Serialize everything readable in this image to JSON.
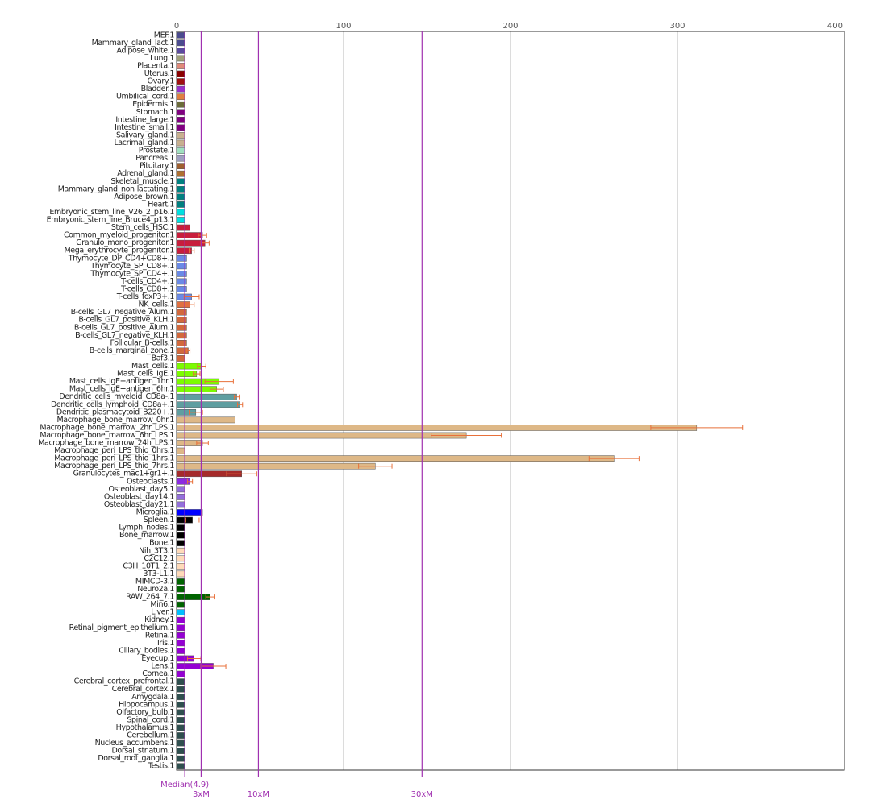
{
  "chart_data": {
    "type": "bar",
    "orientation": "horizontal",
    "categories": [
      "MEF.1",
      "Mammary_gland_lact.1",
      "Adipose_white.1",
      "Lung.1",
      "Placenta.1",
      "Uterus.1",
      "Ovary.1",
      "Bladder.1",
      "Umbilical_cord.1",
      "Epidermis.1",
      "Stomach.1",
      "Intestine_large.1",
      "Intestine_small.1",
      "Salivary_gland.1",
      "Lacrimal_gland.1",
      "Prostate.1",
      "Pancreas.1",
      "Pituitary.1",
      "Adrenal_gland.1",
      "Skeletal_muscle.1",
      "Mammary_gland_non-lactating.1",
      "Adipose_brown.1",
      "Heart.1",
      "Embryonic_stem_line_V26_2_p16.1",
      "Embryonic_stem_line_Bruce4_p13.1",
      "Stem_cells_HSC.1",
      "Common_myeloid_progenitor.1",
      "Granulo_mono_progenitor.1",
      "Mega_erythrocyte_progenitor.1",
      "Thymocyte_DP_CD4+CD8+.1",
      "Thymocyte_SP_CD8+.1",
      "Thymocyte_SP_CD4+.1",
      "T-cells_CD4+.1",
      "T-cells_CD8+.1",
      "T-cells_foxP3+.1",
      "NK_cells.1",
      "B-cells_GL7_negative_Alum.1",
      "B-cells_GL7_positive_KLH.1",
      "B-cells_GL7_positive_Alum.1",
      "B-cells_GL7_negative_KLH.1",
      "Follicular_B-cells.1",
      "B-cells_marginal_zone.1",
      "Baf3.1",
      "Mast_cells.1",
      "Mast_cells_IgE.1",
      "Mast_cells_IgE+antigen_1hr.1",
      "Mast_cells_IgE+antigen_6hr.1",
      "Dendritic_cells_myeloid_CD8a-.1",
      "Dendritic_cells_lymphoid_CD8a+.1",
      "Dendritic_plasmacytoid_B220+.1",
      "Macrophage_bone_marrow_0hr.1",
      "Macrophage_bone_marrow_2hr_LPS.1",
      "Macrophage_bone_marrow_6hr_LPS.1",
      "Macrophage_bone_marrow_24h_LPS.1",
      "Macrophage_peri_LPS_thio_0hrs.1",
      "Macrophage_peri_LPS_thio_1hrs.1",
      "Macrophage_peri_LPS_thio_7hrs.1",
      "Granulocytes_mac1+gr1+.1",
      "Osteoclasts.1",
      "Osteoblast_day5.1",
      "Osteoblast_day14.1",
      "Osteoblast_day21.1",
      "Microglia.1",
      "Spleen.1",
      "Lymph_nodes.1",
      "Bone_marrow.1",
      "Bone.1",
      "Nih_3T3.1",
      "C2C12.1",
      "C3H_10T1_2.1",
      "3T3-L1.1",
      "MIMCD-3.1",
      "Neuro2a.1",
      "RAW_264_7.1",
      "Min6.1",
      "Liver.1",
      "Kidney.1",
      "Retinal_pigment_epithelium.1",
      "Retina.1",
      "Iris.1",
      "Ciliary_bodies.1",
      "Eyecup.1",
      "Lens.1",
      "Cornea.1",
      "Cerebral_cortex_prefrontal.1",
      "Cerebral_cortex.1",
      "Amygdala.1",
      "Hippocampus.1",
      "Olfactory_bulb.1",
      "Spinal_cord.1",
      "Hypothalamus.1",
      "Cerebellum.1",
      "Nucleus_accumbens.1",
      "Dorsal_striatum.1",
      "Dorsal_root_ganglia.1",
      "Testis.1"
    ],
    "values": [
      5,
      5,
      5,
      5,
      5,
      5,
      5,
      5,
      5,
      5,
      5,
      5,
      5,
      5,
      5,
      5,
      5,
      5,
      5,
      5,
      5,
      5,
      5,
      5,
      5,
      8,
      15.5,
      17,
      9,
      6,
      6,
      6,
      6,
      6,
      9,
      8,
      6,
      6,
      6,
      6,
      6,
      7,
      5,
      15,
      12,
      25.5,
      24,
      36,
      38,
      11.5,
      35,
      311.5,
      173.5,
      15.5,
      5,
      262,
      119,
      39,
      8,
      5,
      5,
      5,
      15.5,
      9.5,
      5,
      5,
      5,
      5,
      5,
      5,
      5,
      5,
      5,
      20,
      5,
      5,
      5,
      5,
      5,
      5,
      5,
      10.5,
      22,
      5,
      5,
      5,
      5,
      5,
      5,
      5,
      5,
      5,
      5,
      5,
      5,
      5
    ],
    "errors": [
      null,
      null,
      null,
      null,
      null,
      null,
      null,
      null,
      null,
      null,
      null,
      null,
      null,
      null,
      null,
      null,
      null,
      null,
      null,
      null,
      null,
      null,
      null,
      null,
      null,
      null,
      2.5,
      2.5,
      1.5,
      null,
      null,
      null,
      null,
      null,
      4.5,
      2.5,
      null,
      null,
      null,
      null,
      null,
      1,
      null,
      2.5,
      2,
      8.5,
      4,
      1.5,
      1.5,
      4,
      null,
      27.5,
      21,
      3.5,
      null,
      15,
      10,
      9,
      1.5,
      null,
      null,
      null,
      null,
      4,
      null,
      null,
      null,
      null,
      null,
      null,
      null,
      null,
      null,
      2.5,
      null,
      null,
      null,
      null,
      null,
      null,
      null,
      4,
      7.5,
      null,
      null,
      null,
      null,
      null,
      null,
      null,
      null,
      null,
      null,
      null,
      null,
      null
    ],
    "colors": [
      "#4b4b8f",
      "#4b4b8f",
      "#5b4b9f",
      "#a0a07a",
      "#e08a7a",
      "#8b0000",
      "#a01010",
      "#9932cc",
      "#e08040",
      "#6b6b3a",
      "#800080",
      "#800080",
      "#800080",
      "#c8b090",
      "#c8b090",
      "#a0e0c0",
      "#a0a0c0",
      "#a06030",
      "#b07030",
      "#008080",
      "#008080",
      "#008080",
      "#008080",
      "#00e0e0",
      "#00e0e0",
      "#c81e3c",
      "#c81e3c",
      "#c81e3c",
      "#c81e3c",
      "#6a8ae6",
      "#6a8ae6",
      "#6a8ae6",
      "#6a8ae6",
      "#6a8ae6",
      "#6a8ae6",
      "#e07040",
      "#d2693c",
      "#d2693c",
      "#d2693c",
      "#d2693c",
      "#d2693c",
      "#d2693c",
      "#d2693c",
      "#7cfc00",
      "#7cfc00",
      "#7cfc00",
      "#7cfc00",
      "#5f9ea0",
      "#5f9ea0",
      "#5f9ea0",
      "#deb887",
      "#deb887",
      "#deb887",
      "#deb887",
      "#deb887",
      "#deb887",
      "#deb887",
      "#a52a2a",
      "#8a2be2",
      "#9370db",
      "#9370db",
      "#9370db",
      "#0000ff",
      "#000000",
      "#000000",
      "#000000",
      "#000000",
      "#ffdab9",
      "#ffdab9",
      "#ffdab9",
      "#ffdab9",
      "#006400",
      "#006400",
      "#006400",
      "#006400",
      "#00bfff",
      "#9400d3",
      "#9400d3",
      "#9400d3",
      "#9400d3",
      "#9400d3",
      "#9400d3",
      "#9400d3",
      "#9400d3",
      "#2f4f4f",
      "#2f4f4f",
      "#2f4f4f",
      "#2f4f4f",
      "#2f4f4f",
      "#2f4f4f",
      "#2f4f4f",
      "#2f4f4f",
      "#2f4f4f",
      "#2f4f4f",
      "#2f4f4f",
      "#2f4f4f"
    ],
    "error_color": "#e8703a",
    "xlim": [
      0,
      400
    ],
    "xticks": [
      0,
      100,
      200,
      300,
      400
    ],
    "grid": true,
    "reference_lines": [
      {
        "value": 4.9,
        "label": "Median(4.9)"
      },
      {
        "value": 14.7,
        "label": "3xM"
      },
      {
        "value": 49,
        "label": "10xM"
      },
      {
        "value": 147,
        "label": "30xM"
      }
    ],
    "reference_color": "#a030b0"
  }
}
